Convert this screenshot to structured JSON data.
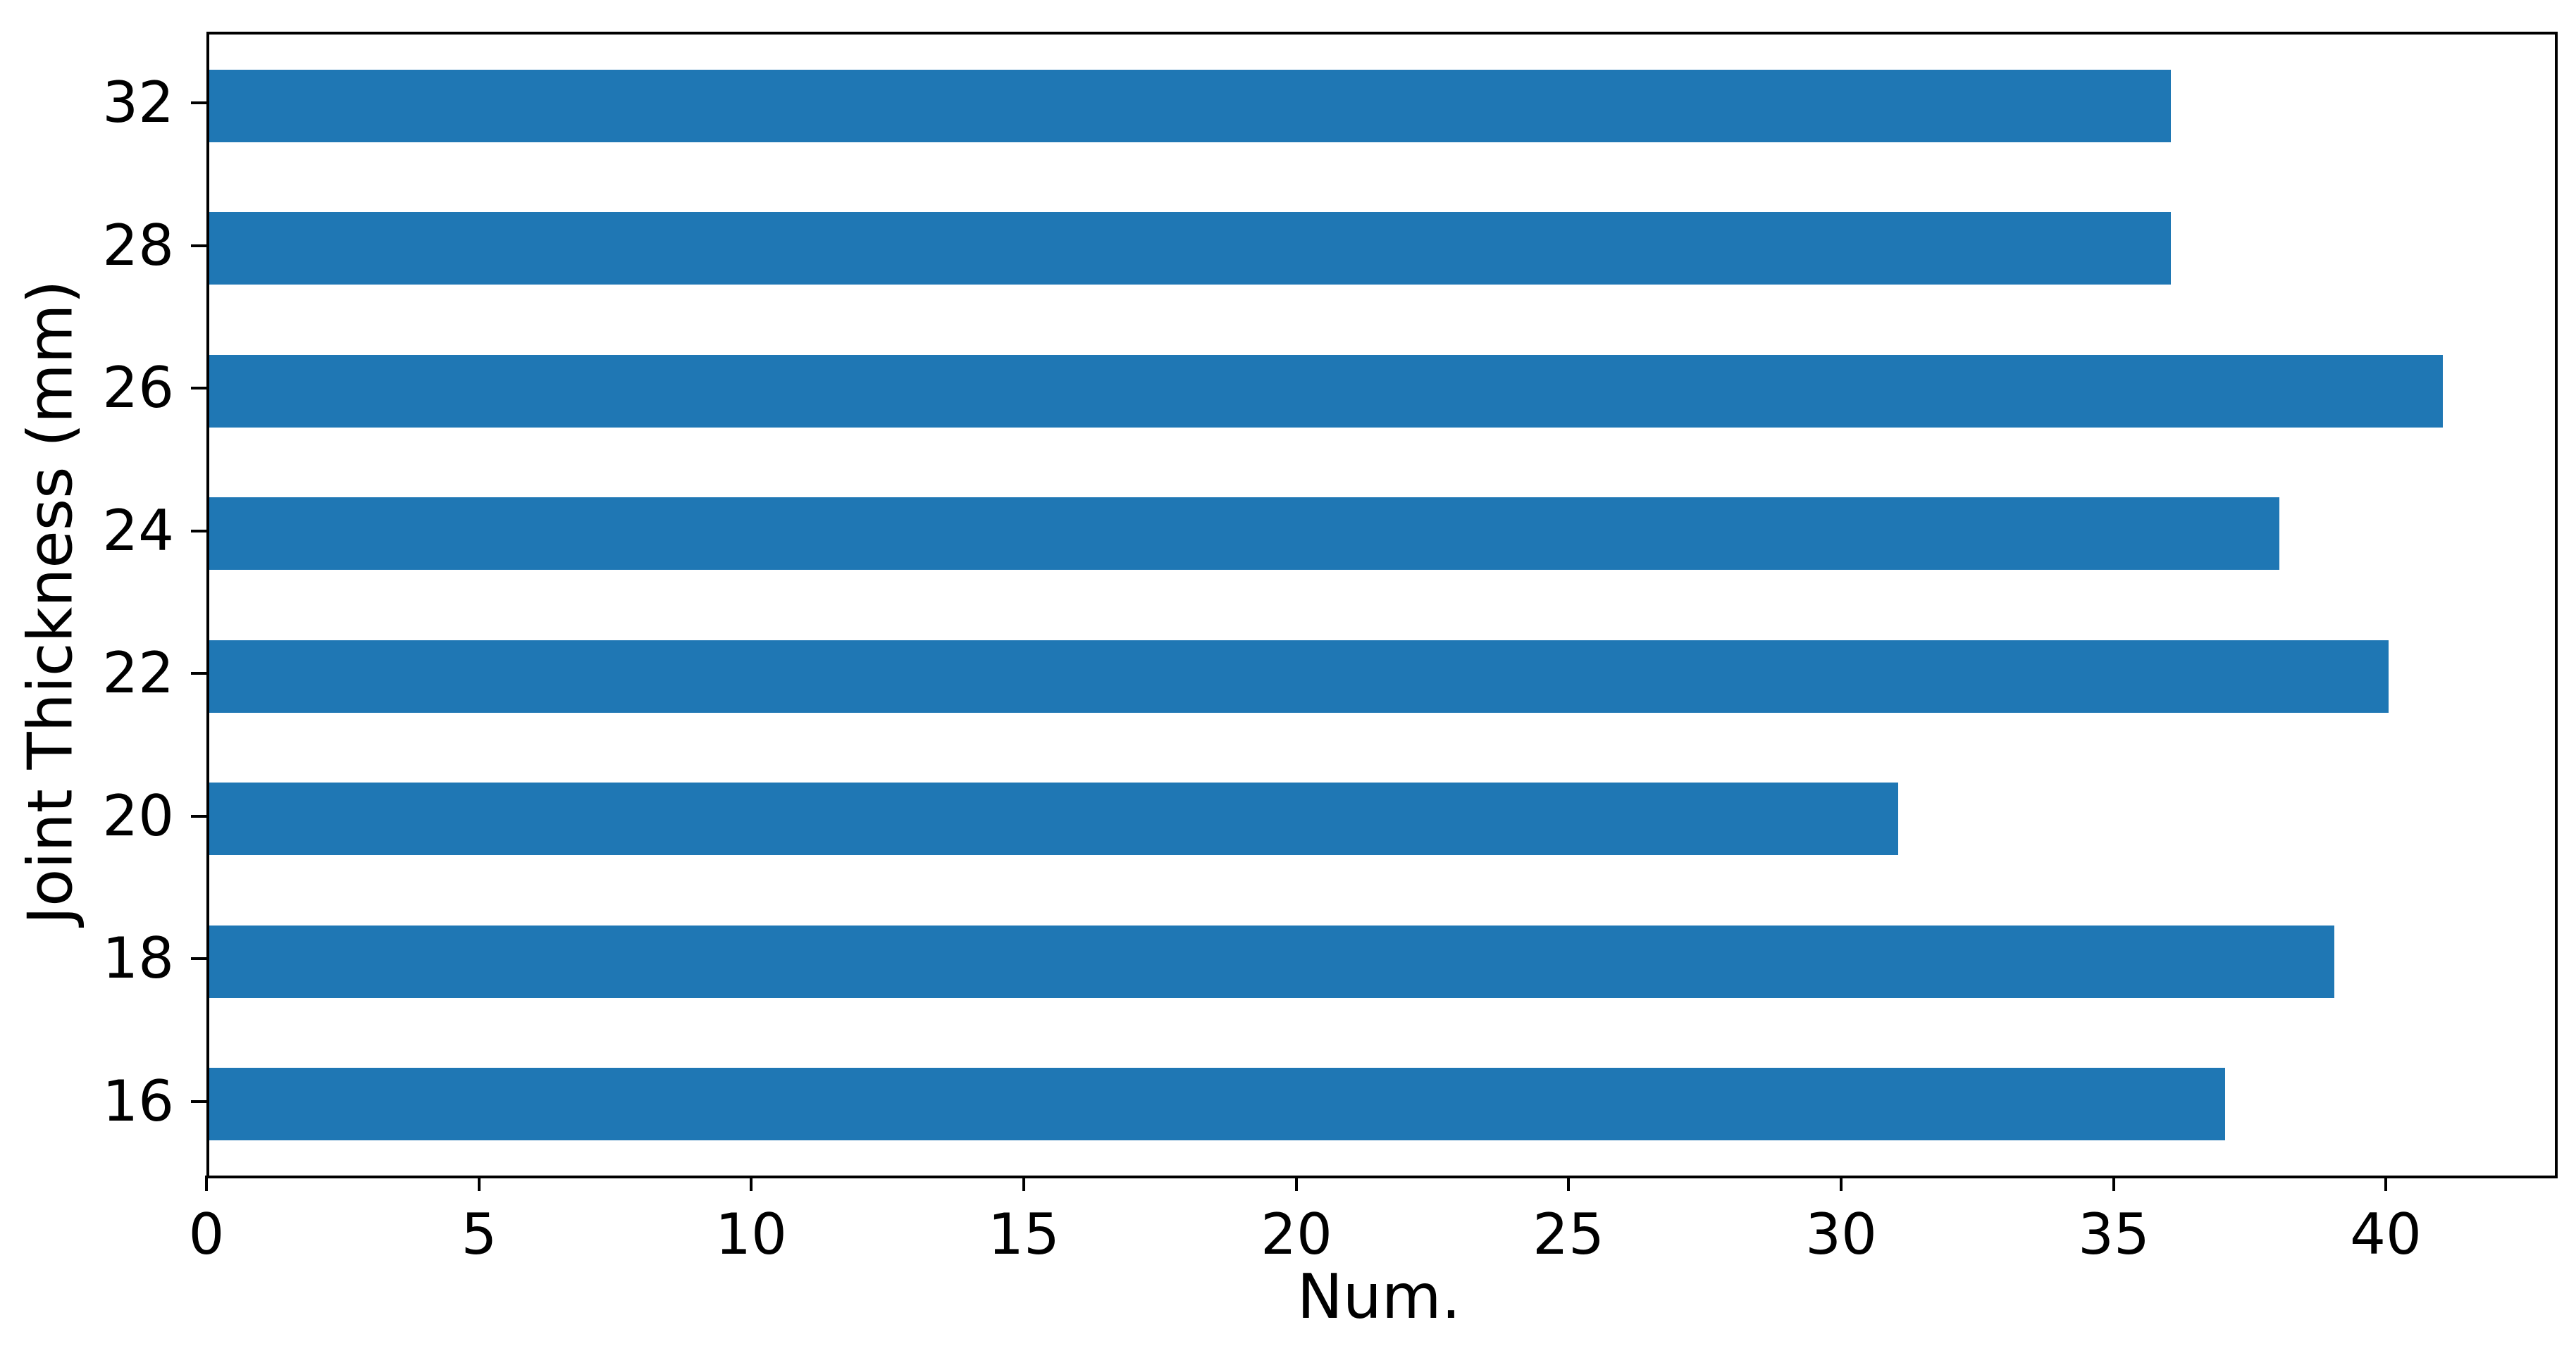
{
  "chart_data": {
    "type": "bar",
    "orientation": "horizontal",
    "title": "",
    "xlabel": "Num.",
    "ylabel": "Joint Thickness (mm)",
    "rows_top_to_bottom": [
      {
        "label": "32",
        "value": 36
      },
      {
        "label": "28",
        "value": 36
      },
      {
        "label": "26",
        "value": 41
      },
      {
        "label": "24",
        "value": 38
      },
      {
        "label": "22",
        "value": 40
      },
      {
        "label": "20",
        "value": 31
      },
      {
        "label": "18",
        "value": 39
      },
      {
        "label": "16",
        "value": 37
      }
    ],
    "xticks": [
      0,
      5,
      10,
      15,
      20,
      25,
      30,
      35,
      40
    ],
    "xlim": [
      0,
      43.05
    ],
    "bar_color": "#1f77b4",
    "bar_height_fraction": 0.51,
    "grid": false,
    "legend": false,
    "spine_color": "#000000",
    "tick_label_color": "#000000"
  }
}
